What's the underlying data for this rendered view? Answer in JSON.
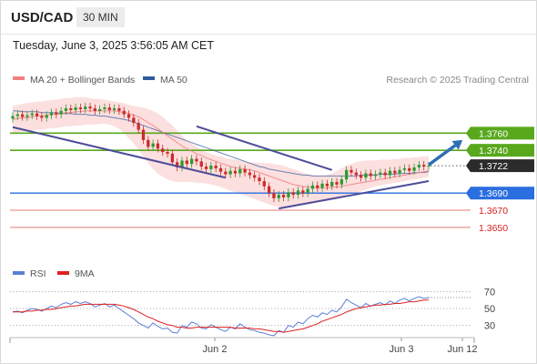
{
  "header": {
    "symbol": "USD/CAD",
    "timeframe": "30 MIN"
  },
  "timestamp": "Tuesday, June 3, 2025 3:56:05 AM CET",
  "legend": {
    "ma20": "MA 20 + Bollinger Bands",
    "ma50": "MA 50",
    "copyright": "Research © 2025 Trading Central",
    "rsi": "RSI",
    "ma9": "9MA"
  },
  "colors": {
    "ma20": "#f08080",
    "ma50": "#2f5a9e",
    "bollinger_fill": "#fbd4d4",
    "candle_up": "#2e9a2e",
    "candle_down": "#cc2a2a",
    "resistance": "#58a81c",
    "support": "#2a6ee0",
    "support_minor": "#e87a7a",
    "trendline": "#4d4d9a",
    "arrow": "#2f6fb5",
    "rsi_line": "#5b7fd6",
    "rsi_ma": "#e02020"
  },
  "chart_data": [
    {
      "type": "candlestick",
      "title": "USD/CAD 30 MIN",
      "x_labels": [
        "Jun 2",
        "Jun 3",
        "Jun 12"
      ],
      "ylim": [
        1.3636,
        1.3805
      ],
      "current_price": 1.3722,
      "price_levels": [
        {
          "label": "1.3760",
          "value": 1.376,
          "kind": "resistance"
        },
        {
          "label": "1.3740",
          "value": 1.374,
          "kind": "resistance"
        },
        {
          "label": "1.3722",
          "value": 1.3722,
          "kind": "current"
        },
        {
          "label": "1.3690",
          "value": 1.369,
          "kind": "support"
        },
        {
          "label": "1.3670",
          "value": 1.367,
          "kind": "support-minor"
        },
        {
          "label": "1.3650",
          "value": 1.365,
          "kind": "support-minor"
        }
      ],
      "closes": [
        1.378,
        1.3782,
        1.3779,
        1.3781,
        1.3783,
        1.378,
        1.3778,
        1.3781,
        1.3784,
        1.3782,
        1.3786,
        1.3789,
        1.3787,
        1.379,
        1.3788,
        1.3791,
        1.3789,
        1.3786,
        1.3788,
        1.379,
        1.3787,
        1.3789,
        1.3786,
        1.3782,
        1.3778,
        1.3772,
        1.3764,
        1.3752,
        1.3744,
        1.3748,
        1.3742,
        1.3738,
        1.3736,
        1.3726,
        1.372,
        1.3728,
        1.3724,
        1.373,
        1.3727,
        1.3721,
        1.3718,
        1.3722,
        1.3719,
        1.3715,
        1.3712,
        1.3716,
        1.3713,
        1.3718,
        1.3714,
        1.3711,
        1.3708,
        1.3704,
        1.3698,
        1.369,
        1.3684,
        1.3688,
        1.3685,
        1.3691,
        1.3688,
        1.3693,
        1.369,
        1.3695,
        1.3699,
        1.3696,
        1.3701,
        1.3698,
        1.3703,
        1.37,
        1.3706,
        1.3717,
        1.3714,
        1.3711,
        1.3708,
        1.3713,
        1.371,
        1.3712,
        1.3714,
        1.3711,
        1.3716,
        1.3713,
        1.3717,
        1.3719,
        1.3716,
        1.372,
        1.3723,
        1.3721,
        1.3722
      ],
      "ma20": [
        1.3776,
        1.3777,
        1.3778,
        1.3778,
        1.3779,
        1.378,
        1.378,
        1.3781,
        1.3782,
        1.3782,
        1.3783,
        1.3784,
        1.3784,
        1.3785,
        1.3785,
        1.3786,
        1.3786,
        1.3786,
        1.3786,
        1.3786,
        1.3786,
        1.3786,
        1.3785,
        1.3784,
        1.3783,
        1.3781,
        1.3779,
        1.3776,
        1.3772,
        1.3769,
        1.3765,
        1.3761,
        1.3757,
        1.3753,
        1.3749,
        1.3745,
        1.3742,
        1.3739,
        1.3736,
        1.3734,
        1.3731,
        1.3729,
        1.3727,
        1.3725,
        1.3723,
        1.3721,
        1.372,
        1.3719,
        1.3718,
        1.3717,
        1.3716,
        1.3714,
        1.3712,
        1.371,
        1.3708,
        1.3706,
        1.3704,
        1.3702,
        1.37,
        1.3699,
        1.3698,
        1.3697,
        1.3697,
        1.3696,
        1.3696,
        1.3696,
        1.3697,
        1.3697,
        1.3698,
        1.3699,
        1.37,
        1.3701,
        1.3702,
        1.3703,
        1.3704,
        1.3705,
        1.3706,
        1.3707,
        1.3708,
        1.3709,
        1.371,
        1.3711,
        1.3712,
        1.3713,
        1.3714,
        1.3715,
        1.3716
      ],
      "bb_upper": [
        1.3792,
        1.3793,
        1.3794,
        1.3795,
        1.3796,
        1.3797,
        1.3797,
        1.3798,
        1.3799,
        1.3799,
        1.38,
        1.3801,
        1.3801,
        1.3802,
        1.3802,
        1.3802,
        1.3801,
        1.38,
        1.38,
        1.3799,
        1.3798,
        1.3797,
        1.3796,
        1.3795,
        1.3793,
        1.3792,
        1.3791,
        1.379,
        1.3788,
        1.3786,
        1.3783,
        1.3779,
        1.3774,
        1.3769,
        1.3763,
        1.3757,
        1.3752,
        1.3748,
        1.3744,
        1.3741,
        1.3738,
        1.3736,
        1.3734,
        1.3733,
        1.3731,
        1.373,
        1.3729,
        1.3728,
        1.3727,
        1.3726,
        1.3726,
        1.3725,
        1.3725,
        1.3725,
        1.3724,
        1.3723,
        1.3722,
        1.372,
        1.3718,
        1.3716,
        1.3714,
        1.3712,
        1.3711,
        1.371,
        1.371,
        1.3711,
        1.3713,
        1.3716,
        1.3719,
        1.3722,
        1.3724,
        1.3726,
        1.3727,
        1.3728,
        1.3728,
        1.3728,
        1.3729,
        1.3729,
        1.3729,
        1.373,
        1.373,
        1.3731,
        1.3731,
        1.3732,
        1.3732,
        1.3733,
        1.3733
      ],
      "bb_lower": [
        1.376,
        1.3761,
        1.3762,
        1.3762,
        1.3763,
        1.3764,
        1.3764,
        1.3765,
        1.3766,
        1.3766,
        1.3767,
        1.3768,
        1.3768,
        1.3769,
        1.3769,
        1.377,
        1.377,
        1.377,
        1.3771,
        1.3771,
        1.377,
        1.3768,
        1.3765,
        1.376,
        1.3754,
        1.3748,
        1.3741,
        1.3733,
        1.3725,
        1.3718,
        1.3713,
        1.3709,
        1.3706,
        1.3704,
        1.3703,
        1.3703,
        1.3703,
        1.3703,
        1.3702,
        1.3702,
        1.3701,
        1.37,
        1.3699,
        1.3697,
        1.3695,
        1.3693,
        1.3691,
        1.3689,
        1.3687,
        1.3685,
        1.3683,
        1.3681,
        1.3679,
        1.3677,
        1.3675,
        1.3674,
        1.3673,
        1.3673,
        1.3674,
        1.3675,
        1.3676,
        1.3677,
        1.3678,
        1.3679,
        1.368,
        1.3681,
        1.3682,
        1.3683,
        1.3684,
        1.3686,
        1.3688,
        1.369,
        1.3692,
        1.3694,
        1.3696,
        1.3698,
        1.3699,
        1.37,
        1.3701,
        1.3702,
        1.3703,
        1.3704,
        1.3705,
        1.3706,
        1.3707,
        1.3708,
        1.3709
      ],
      "ma50": [
        1.3786,
        1.3786,
        1.3785,
        1.3785,
        1.3785,
        1.3785,
        1.3784,
        1.3784,
        1.3784,
        1.3784,
        1.3783,
        1.3783,
        1.3783,
        1.3782,
        1.3782,
        1.3782,
        1.3781,
        1.3781,
        1.378,
        1.378,
        1.3779,
        1.3778,
        1.3777,
        1.3776,
        1.3775,
        1.3773,
        1.3771,
        1.3769,
        1.3767,
        1.3765,
        1.3763,
        1.3761,
        1.3759,
        1.3757,
        1.3755,
        1.3753,
        1.3751,
        1.3749,
        1.3747,
        1.3745,
        1.3743,
        1.3741,
        1.3739,
        1.3737,
        1.3735,
        1.3733,
        1.3731,
        1.3729,
        1.3727,
        1.3725,
        1.3723,
        1.3721,
        1.372,
        1.3718,
        1.3717,
        1.3716,
        1.3715,
        1.3714,
        1.3713,
        1.3712,
        1.3711,
        1.3711,
        1.371,
        1.371,
        1.371,
        1.371,
        1.371,
        1.371,
        1.371,
        1.371,
        1.371,
        1.371,
        1.3711,
        1.3711,
        1.3711,
        1.3711,
        1.3712,
        1.3712,
        1.3712,
        1.3712,
        1.3713,
        1.3713,
        1.3713,
        1.3714,
        1.3714,
        1.3714,
        1.3715
      ],
      "trendlines": [
        {
          "from": [
            0,
            1.3767
          ],
          "to": [
            44,
            1.3708
          ]
        },
        {
          "from": [
            38,
            1.3768
          ],
          "to": [
            66,
            1.3717
          ]
        },
        {
          "from": [
            55,
            1.3672
          ],
          "to": [
            86,
            1.3704
          ]
        }
      ],
      "arrow": {
        "from": [
          86,
          1.3723
        ],
        "to": [
          93,
          1.3752
        ]
      }
    },
    {
      "type": "line",
      "title": "RSI",
      "ylim": [
        20,
        78
      ],
      "y_ticks": [
        70,
        50,
        30
      ],
      "series": [
        {
          "name": "RSI",
          "values": [
            46,
            47,
            45,
            48,
            50,
            49,
            47,
            50,
            53,
            51,
            55,
            57,
            55,
            58,
            56,
            58,
            56,
            52,
            54,
            56,
            52,
            54,
            50,
            46,
            42,
            38,
            33,
            30,
            27,
            33,
            29,
            26,
            27,
            22,
            21,
            30,
            28,
            34,
            32,
            27,
            26,
            31,
            28,
            25,
            23,
            28,
            26,
            32,
            28,
            25,
            24,
            22,
            21,
            19,
            18,
            24,
            22,
            30,
            28,
            34,
            32,
            38,
            42,
            40,
            45,
            43,
            48,
            46,
            52,
            61,
            57,
            54,
            51,
            56,
            53,
            55,
            57,
            54,
            59,
            56,
            60,
            62,
            59,
            62,
            64,
            62,
            63
          ]
        },
        {
          "name": "9MA",
          "values": [
            46,
            46,
            46,
            47,
            47,
            48,
            48,
            49,
            49,
            50,
            51,
            52,
            53,
            53,
            54,
            55,
            55,
            55,
            55,
            55,
            55,
            55,
            54,
            53,
            51,
            49,
            46,
            43,
            40,
            38,
            35,
            33,
            31,
            30,
            28,
            28,
            27,
            27,
            28,
            28,
            28,
            28,
            28,
            28,
            28,
            28,
            27,
            27,
            27,
            27,
            26,
            26,
            25,
            24,
            23,
            23,
            22,
            23,
            24,
            25,
            26,
            28,
            30,
            32,
            35,
            37,
            39,
            41,
            43,
            46,
            48,
            50,
            51,
            52,
            53,
            54,
            54,
            55,
            55,
            56,
            56,
            57,
            58,
            58,
            59,
            60,
            60
          ]
        }
      ]
    }
  ]
}
